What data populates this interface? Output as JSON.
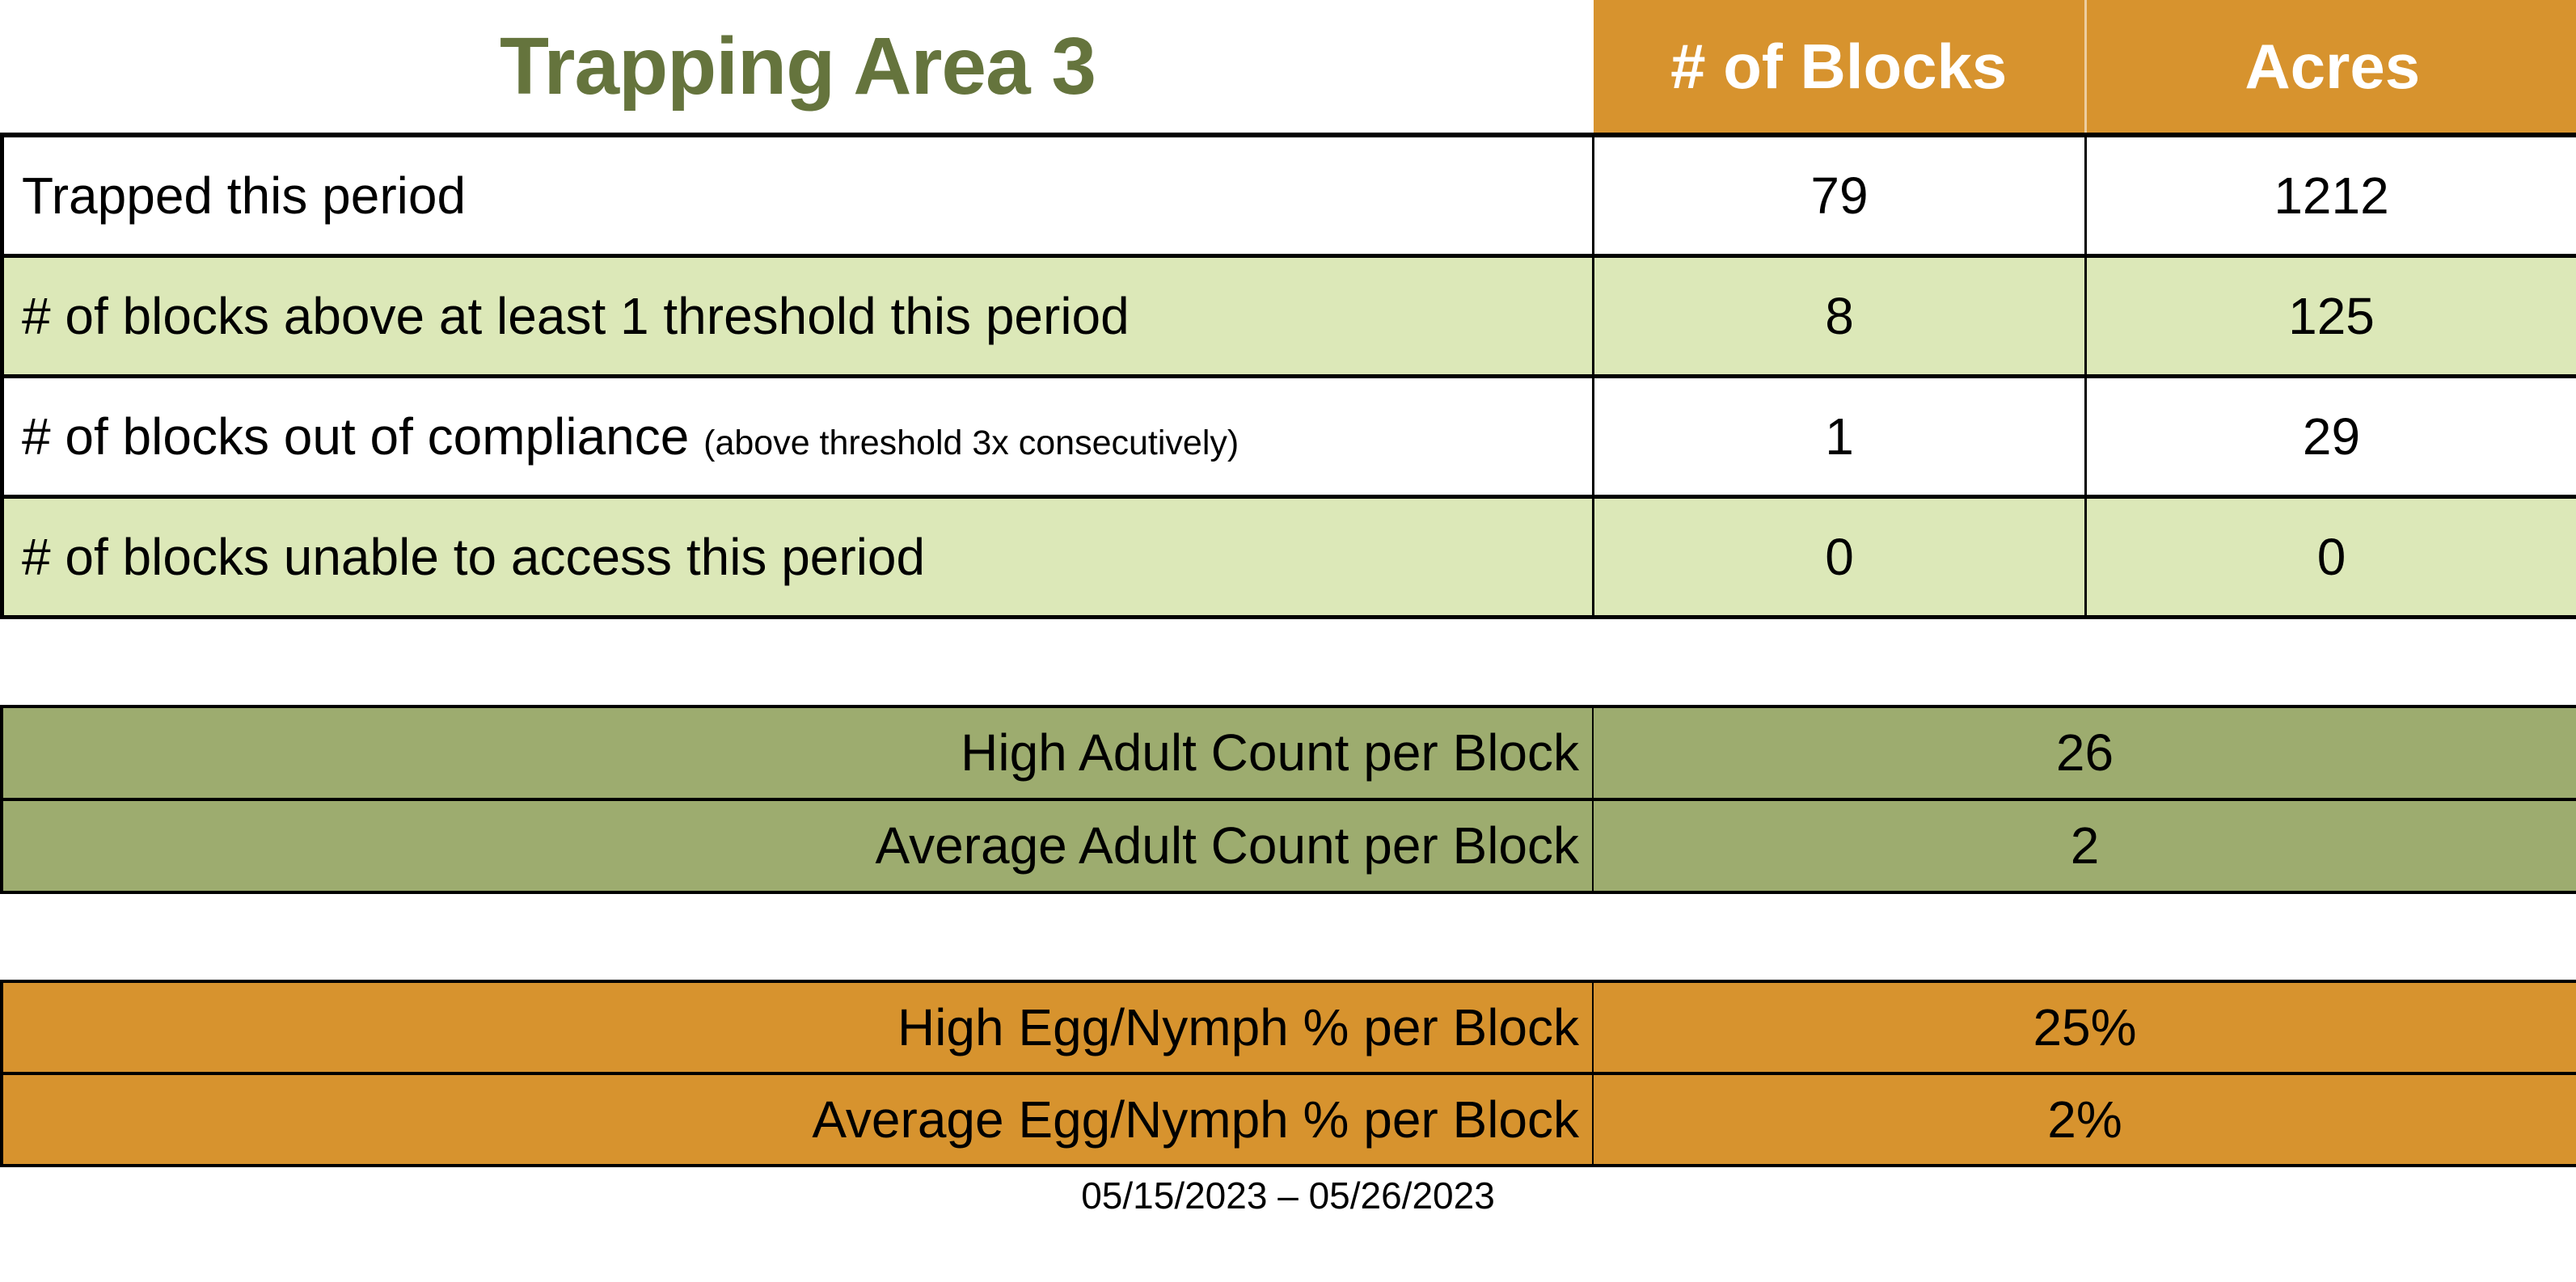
{
  "page": {
    "title": "Trapping Area 3",
    "date_range": "05/15/2023 – 05/26/2023"
  },
  "colors": {
    "header_orange": "#D7932E",
    "row_light_green": "#DCE8B8",
    "olive_band": "#9DAC6F",
    "title_text_olive": "#65743D",
    "header_text": "#FFFFFF",
    "body_text": "#000000",
    "border": "#000000"
  },
  "main": {
    "columns": [
      {
        "label": "# of Blocks"
      },
      {
        "label": "Acres"
      }
    ],
    "rows": [
      {
        "label": "Trapped this period",
        "blocks": "79",
        "acres": "1212"
      },
      {
        "label": "# of blocks above at least 1 threshold this period",
        "blocks": "8",
        "acres": "125"
      },
      {
        "label": "# of blocks out of compliance",
        "note": "(above threshold 3x consecutively)",
        "blocks": "1",
        "acres": "29"
      },
      {
        "label": "# of blocks unable to access this period",
        "blocks": "0",
        "acres": "0"
      }
    ]
  },
  "adult": {
    "rows": [
      {
        "label": "High Adult Count per Block",
        "value": "26"
      },
      {
        "label": "Average Adult Count per Block",
        "value": "2"
      }
    ]
  },
  "egg": {
    "rows": [
      {
        "label": "High Egg/Nymph % per Block",
        "value": "25%"
      },
      {
        "label": "Average Egg/Nymph % per Block",
        "value": "2%"
      }
    ]
  },
  "chart_data": {
    "type": "table",
    "title": "Trapping Area 3",
    "columns": [
      "",
      "# of Blocks",
      "Acres"
    ],
    "rows": [
      [
        "Trapped this period",
        79,
        1212
      ],
      [
        "# of blocks above at least 1 threshold this period",
        8,
        125
      ],
      [
        "# of blocks out of compliance (above threshold 3x consecutively)",
        1,
        29
      ],
      [
        "# of blocks unable to access this period",
        0,
        0
      ],
      [
        "High Adult Count per Block",
        26,
        null
      ],
      [
        "Average Adult Count per Block",
        2,
        null
      ],
      [
        "High Egg/Nymph % per Block",
        "25%",
        null
      ],
      [
        "Average Egg/Nymph % per Block",
        "2%",
        null
      ]
    ],
    "footnote": "05/15/2023 – 05/26/2023"
  }
}
